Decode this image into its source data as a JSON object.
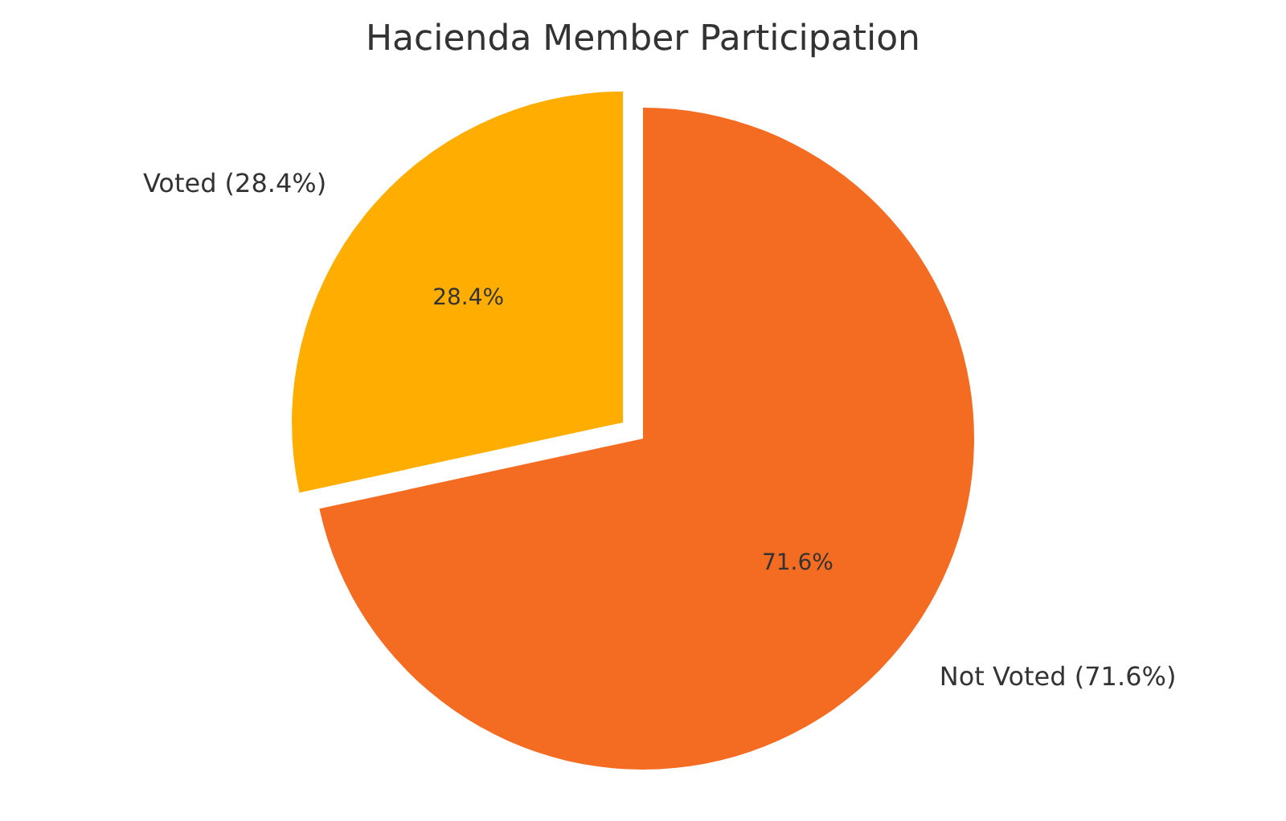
{
  "chart_data": {
    "type": "pie",
    "title": "Hacienda Member Participation",
    "categories": [
      "Voted (28.4%)",
      "Not Voted (71.6%)"
    ],
    "values": [
      28.4,
      71.6
    ],
    "colors": [
      "#ffae00",
      "#f46b22"
    ],
    "value_labels": [
      "28.4%",
      "71.6%"
    ]
  }
}
